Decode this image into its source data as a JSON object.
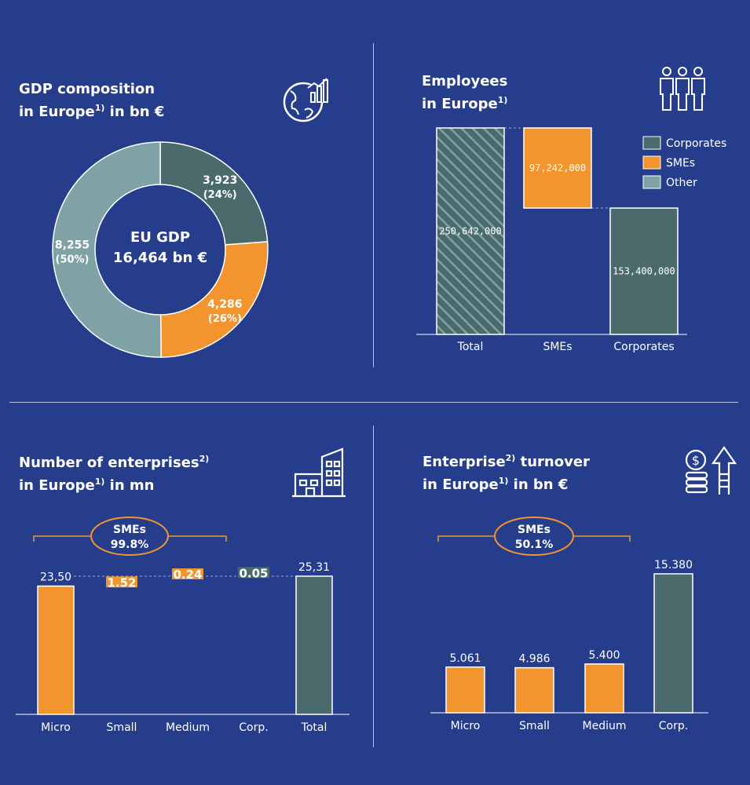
{
  "colors": {
    "background": "#263d8c",
    "corporates": "#4a6a6b",
    "smes": "#f2952f",
    "other": "#7fa2a6",
    "white": "#ffffff"
  },
  "panel_gdp": {
    "title_line1": "GDP composition",
    "title_line2_pre": "in Europe",
    "title_line2_sup": "1)",
    "title_line2_post": " in bn €",
    "center_line1": "EU GDP",
    "center_line2": "16,464 bn €",
    "icon": "globe-chart-icon"
  },
  "panel_employees": {
    "title_line1": "Employees",
    "title_line2_pre": "in Europe",
    "title_line2_sup": "1)",
    "icon": "people-icon",
    "legend": [
      "Corporates",
      "SMEs",
      "Other"
    ]
  },
  "panel_enterprises": {
    "title_line1_pre": "Number of enterprises",
    "title_line1_sup": "2)",
    "title_line2_pre": "in Europe",
    "title_line2_sup": "1)",
    "title_line2_post": " in mn",
    "sme_bubble_line1": "SMEs",
    "sme_bubble_line2": "99.8%",
    "icon": "buildings-icon"
  },
  "panel_turnover": {
    "title_line1_pre": "Enterprise",
    "title_line1_sup": "2)",
    "title_line1_post": " turnover",
    "title_line2_pre": "in Europe",
    "title_line2_sup": "1)",
    "title_line2_post": " in bn €",
    "sme_bubble_line1": "SMEs",
    "sme_bubble_line2": "50.1%",
    "icon": "coins-growth-icon"
  },
  "chart_data": [
    {
      "type": "pie",
      "title": "GDP composition in Europe in bn €",
      "slices": [
        {
          "name": "Corporates",
          "value": 3923,
          "label": "3,923",
          "pct_label": "(24%)"
        },
        {
          "name": "SMEs",
          "value": 4286,
          "label": "4,286",
          "pct_label": "(26%)"
        },
        {
          "name": "Other",
          "value": 8255,
          "label": "8,255",
          "pct_label": "(50%)"
        }
      ]
    },
    {
      "type": "bar",
      "title": "Employees in Europe",
      "categories": [
        "Total",
        "SMEs",
        "Corporates"
      ],
      "values": [
        250642000,
        97242000,
        153400000
      ],
      "value_labels": [
        "250,642,000",
        "97,242,000",
        "153,400,000"
      ],
      "legend": [
        "Corporates",
        "SMEs",
        "Other"
      ],
      "legend_placement": "top-right",
      "waterfall": true
    },
    {
      "type": "bar",
      "title": "Number of enterprises in Europe in mn",
      "categories": [
        "Micro",
        "Small",
        "Medium",
        "Corp.",
        "Total"
      ],
      "values": [
        23.5,
        1.52,
        0.24,
        0.05,
        25.31
      ],
      "value_labels": [
        "23,50",
        "1.52",
        "0.24",
        "0.05",
        "25,31"
      ],
      "waterfall": true
    },
    {
      "type": "bar",
      "title": "Enterprise turnover in Europe in bn €",
      "categories": [
        "Micro",
        "Small",
        "Medium",
        "Corp."
      ],
      "values": [
        5.061,
        4.986,
        5.4,
        15.38
      ],
      "value_labels": [
        "5.061",
        "4.986",
        "5.400",
        "15.380"
      ]
    }
  ]
}
